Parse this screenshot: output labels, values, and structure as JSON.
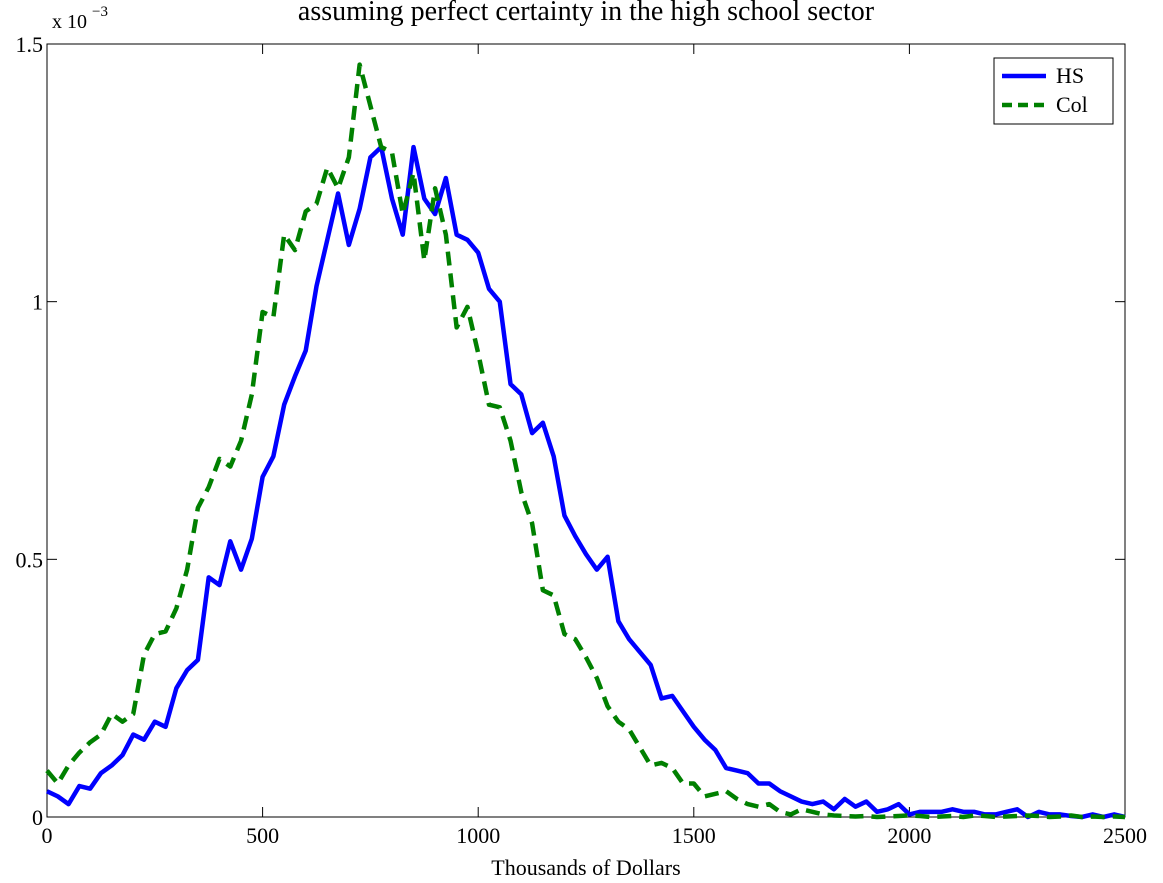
{
  "chart_data": {
    "type": "line",
    "title": "assuming perfect certainty in the high school sector",
    "xlabel": "Thousands of Dollars",
    "y_multiplier": {
      "text": "x 10",
      "exponent": "−3"
    },
    "x": [
      0,
      25,
      50,
      75,
      100,
      125,
      150,
      175,
      200,
      225,
      250,
      275,
      300,
      325,
      350,
      375,
      400,
      425,
      450,
      475,
      500,
      525,
      550,
      575,
      600,
      625,
      650,
      675,
      700,
      725,
      750,
      775,
      800,
      825,
      850,
      875,
      900,
      925,
      950,
      975,
      1000,
      1025,
      1050,
      1075,
      1100,
      1125,
      1150,
      1175,
      1200,
      1225,
      1250,
      1275,
      1300,
      1325,
      1350,
      1375,
      1400,
      1425,
      1450,
      1475,
      1500,
      1525,
      1550,
      1575,
      1600,
      1625,
      1650,
      1675,
      1700,
      1725,
      1750,
      1775,
      1800,
      1825,
      1850,
      1875,
      1900,
      1925,
      1950,
      1975,
      2000,
      2025,
      2050,
      2075,
      2100,
      2125,
      2150,
      2175,
      2200,
      2225,
      2250,
      2275,
      2300,
      2325,
      2350,
      2375,
      2400,
      2425,
      2450,
      2475,
      2500
    ],
    "series": [
      {
        "name": "HS",
        "color": "#0000ff",
        "dash": "solid",
        "values": [
          0.05,
          0.04,
          0.025,
          0.06,
          0.055,
          0.085,
          0.1,
          0.12,
          0.16,
          0.15,
          0.185,
          0.175,
          0.25,
          0.285,
          0.305,
          0.465,
          0.45,
          0.535,
          0.48,
          0.54,
          0.66,
          0.7,
          0.8,
          0.855,
          0.905,
          1.03,
          1.12,
          1.21,
          1.11,
          1.18,
          1.28,
          1.3,
          1.2,
          1.13,
          1.3,
          1.2,
          1.17,
          1.24,
          1.13,
          1.12,
          1.095,
          1.025,
          1.0,
          0.84,
          0.82,
          0.745,
          0.765,
          0.7,
          0.585,
          0.545,
          0.51,
          0.48,
          0.505,
          0.38,
          0.345,
          0.32,
          0.295,
          0.23,
          0.235,
          0.205,
          0.175,
          0.15,
          0.13,
          0.095,
          0.09,
          0.085,
          0.065,
          0.065,
          0.05,
          0.04,
          0.03,
          0.025,
          0.03,
          0.015,
          0.035,
          0.02,
          0.03,
          0.01,
          0.015,
          0.025,
          0.005,
          0.01,
          0.01,
          0.01,
          0.015,
          0.01,
          0.01,
          0.005,
          0.005,
          0.01,
          0.015,
          0,
          0.01,
          0.005,
          0.005,
          0.002,
          0,
          0.005,
          0,
          0.005,
          0
        ]
      },
      {
        "name": "Col",
        "color": "#008000",
        "dash": "dashed",
        "values": [
          0.09,
          0.065,
          0.1,
          0.125,
          0.145,
          0.16,
          0.2,
          0.185,
          0.2,
          0.315,
          0.355,
          0.36,
          0.405,
          0.48,
          0.6,
          0.64,
          0.695,
          0.68,
          0.73,
          0.82,
          0.98,
          0.97,
          1.13,
          1.1,
          1.175,
          1.19,
          1.26,
          1.22,
          1.28,
          1.46,
          1.38,
          1.3,
          1.29,
          1.17,
          1.25,
          1.08,
          1.22,
          1.13,
          0.95,
          0.99,
          0.9,
          0.8,
          0.795,
          0.73,
          0.63,
          0.57,
          0.44,
          0.43,
          0.355,
          0.345,
          0.31,
          0.27,
          0.215,
          0.185,
          0.17,
          0.135,
          0.1,
          0.105,
          0.095,
          0.065,
          0.065,
          0.04,
          0.045,
          0.05,
          0.035,
          0.025,
          0.02,
          0.025,
          0.01,
          0.005,
          0.015,
          0.01,
          0.005,
          0.003,
          0.002,
          0.001,
          0.002,
          0,
          0.001,
          0.002,
          0.003,
          0.002,
          0,
          0.001,
          0.002,
          0,
          0.003,
          0.002,
          0,
          0.001,
          0.002,
          0.003,
          0.002,
          0,
          0.001,
          0.003,
          0,
          0.001,
          0,
          0.001,
          0
        ]
      }
    ],
    "xlim": [
      0,
      2500
    ],
    "ylim": [
      0,
      1.5
    ],
    "xticks": [
      0,
      500,
      1000,
      1500,
      2000,
      2500
    ],
    "yticks": [
      0,
      0.5,
      1,
      1.5
    ],
    "grid": false,
    "legend": "upper right"
  }
}
